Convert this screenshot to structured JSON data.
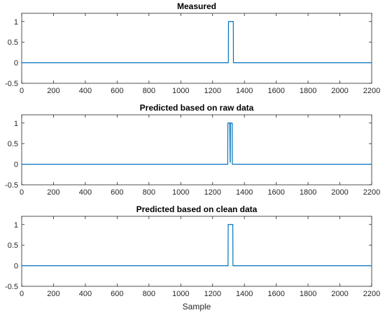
{
  "chart_data": [
    {
      "type": "line",
      "title": "Measured",
      "xlabel": "",
      "ylabel": "",
      "xlim": [
        0,
        2200
      ],
      "ylim": [
        -0.5,
        1.2
      ],
      "xticks": [
        0,
        200,
        400,
        600,
        800,
        1000,
        1200,
        1400,
        1600,
        1800,
        2000,
        2200
      ],
      "yticks": [
        -0.5,
        0,
        0.5,
        1
      ],
      "ytick_labels": [
        "-0.5",
        "0",
        "0.5",
        "1"
      ],
      "color": "#0072BD",
      "series": [
        {
          "x": [
            0,
            1299,
            1300,
            1330,
            1331,
            2200
          ],
          "y": [
            0,
            0,
            1,
            1,
            0,
            0
          ]
        }
      ]
    },
    {
      "type": "line",
      "title": "Predicted based on raw data",
      "xlabel": "",
      "ylabel": "",
      "xlim": [
        0,
        2200
      ],
      "ylim": [
        -0.5,
        1.2
      ],
      "xticks": [
        0,
        200,
        400,
        600,
        800,
        1000,
        1200,
        1400,
        1600,
        1800,
        2000,
        2200
      ],
      "yticks": [
        -0.5,
        0,
        0.5,
        1
      ],
      "ytick_labels": [
        "-0.5",
        "0",
        "0.5",
        "1"
      ],
      "color": "#0072BD",
      "series": [
        {
          "x": [
            0,
            1295,
            1296,
            1308,
            1310,
            1311,
            1312,
            1323,
            1324,
            2200
          ],
          "y": [
            0,
            0,
            1,
            1,
            0.05,
            0.05,
            1,
            1,
            0,
            0
          ]
        }
      ]
    },
    {
      "type": "line",
      "title": "Predicted based on clean data",
      "xlabel": "Sample",
      "ylabel": "",
      "xlim": [
        0,
        2200
      ],
      "ylim": [
        -0.5,
        1.2
      ],
      "xticks": [
        0,
        200,
        400,
        600,
        800,
        1000,
        1200,
        1400,
        1600,
        1800,
        2000,
        2200
      ],
      "yticks": [
        -0.5,
        0,
        0.5,
        1
      ],
      "ytick_labels": [
        "-0.5",
        "0",
        "0.5",
        "1"
      ],
      "color": "#0072BD",
      "series": [
        {
          "x": [
            0,
            1297,
            1298,
            1327,
            1328,
            2200
          ],
          "y": [
            0,
            0,
            1,
            1,
            0,
            0
          ]
        }
      ]
    }
  ]
}
